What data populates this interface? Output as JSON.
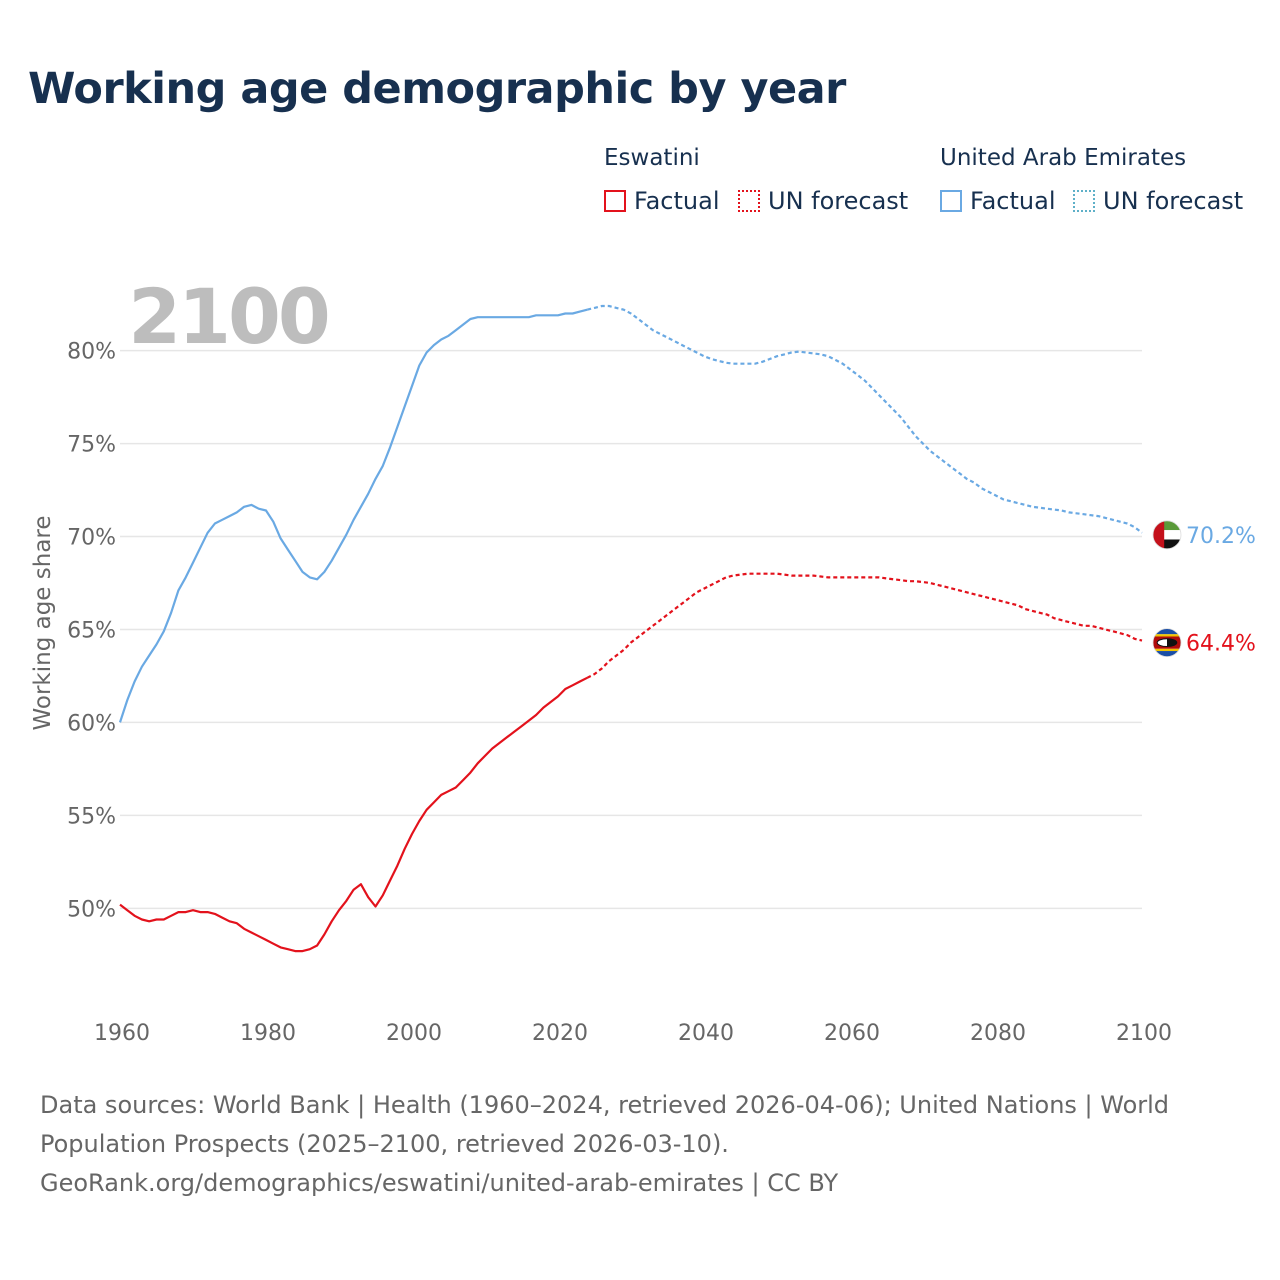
{
  "title": "Working age demographic by year",
  "legend": {
    "groups": [
      {
        "country": "Eswatini",
        "factual_label": "Factual",
        "forecast_label": "UN forecast",
        "color": "#e3121c"
      },
      {
        "country": "United Arab Emirates",
        "factual_label": "Factual",
        "forecast_label": "UN forecast",
        "color": "#6aa9e3"
      }
    ]
  },
  "footer": {
    "line1": "Data sources: World Bank | Health (1960–2024, retrieved 2026-04-06); United Nations | World",
    "line2": "Population Prospects (2025–2100, retrieved 2026-03-10).",
    "line3": "GeoRank.org/demographics/eswatini/united-arab-emirates | CC BY"
  },
  "chart_data": {
    "type": "line",
    "title": "Working age demographic by year",
    "year_label": "2100",
    "xlabel": "",
    "ylabel": "Working age share",
    "xlim": [
      1960,
      2100
    ],
    "ylim": [
      44.8,
      83.8
    ],
    "x_ticks": [
      1960,
      1980,
      2000,
      2020,
      2040,
      2060,
      2080,
      2100
    ],
    "y_ticks": [
      50,
      55,
      60,
      65,
      70,
      75,
      80
    ],
    "y_tick_labels": [
      "50%",
      "55%",
      "60%",
      "65%",
      "70%",
      "75%",
      "80%"
    ],
    "grid": true,
    "forecast_start": 2024,
    "series": [
      {
        "name": "Eswatini",
        "color": "#e3121c",
        "end_label": "64.4%",
        "flag": "eswatini",
        "points": [
          [
            1960,
            50.2
          ],
          [
            1961,
            49.9
          ],
          [
            1962,
            49.6
          ],
          [
            1963,
            49.4
          ],
          [
            1964,
            49.3
          ],
          [
            1965,
            49.4
          ],
          [
            1966,
            49.4
          ],
          [
            1967,
            49.6
          ],
          [
            1968,
            49.8
          ],
          [
            1969,
            49.8
          ],
          [
            1970,
            49.9
          ],
          [
            1971,
            49.8
          ],
          [
            1972,
            49.8
          ],
          [
            1973,
            49.7
          ],
          [
            1974,
            49.5
          ],
          [
            1975,
            49.3
          ],
          [
            1976,
            49.2
          ],
          [
            1977,
            48.9
          ],
          [
            1978,
            48.7
          ],
          [
            1979,
            48.5
          ],
          [
            1980,
            48.3
          ],
          [
            1981,
            48.1
          ],
          [
            1982,
            47.9
          ],
          [
            1983,
            47.8
          ],
          [
            1984,
            47.7
          ],
          [
            1985,
            47.7
          ],
          [
            1986,
            47.8
          ],
          [
            1987,
            48.0
          ],
          [
            1988,
            48.6
          ],
          [
            1989,
            49.3
          ],
          [
            1990,
            49.9
          ],
          [
            1991,
            50.4
          ],
          [
            1992,
            51.0
          ],
          [
            1993,
            51.3
          ],
          [
            1994,
            50.6
          ],
          [
            1995,
            50.1
          ],
          [
            1996,
            50.7
          ],
          [
            1997,
            51.5
          ],
          [
            1998,
            52.3
          ],
          [
            1999,
            53.2
          ],
          [
            2000,
            54.0
          ],
          [
            2001,
            54.7
          ],
          [
            2002,
            55.3
          ],
          [
            2003,
            55.7
          ],
          [
            2004,
            56.1
          ],
          [
            2005,
            56.3
          ],
          [
            2006,
            56.5
          ],
          [
            2007,
            56.9
          ],
          [
            2008,
            57.3
          ],
          [
            2009,
            57.8
          ],
          [
            2010,
            58.2
          ],
          [
            2011,
            58.6
          ],
          [
            2012,
            58.9
          ],
          [
            2013,
            59.2
          ],
          [
            2014,
            59.5
          ],
          [
            2015,
            59.8
          ],
          [
            2016,
            60.1
          ],
          [
            2017,
            60.4
          ],
          [
            2018,
            60.8
          ],
          [
            2019,
            61.1
          ],
          [
            2020,
            61.4
          ],
          [
            2021,
            61.8
          ],
          [
            2022,
            62.0
          ],
          [
            2023,
            62.2
          ],
          [
            2024,
            62.4
          ],
          [
            2025,
            62.6
          ],
          [
            2026,
            62.9
          ],
          [
            2027,
            63.3
          ],
          [
            2028,
            63.6
          ],
          [
            2029,
            63.9
          ],
          [
            2030,
            64.3
          ],
          [
            2031,
            64.6
          ],
          [
            2032,
            64.9
          ],
          [
            2033,
            65.2
          ],
          [
            2034,
            65.5
          ],
          [
            2035,
            65.8
          ],
          [
            2036,
            66.1
          ],
          [
            2037,
            66.4
          ],
          [
            2038,
            66.7
          ],
          [
            2039,
            67.0
          ],
          [
            2040,
            67.2
          ],
          [
            2041,
            67.4
          ],
          [
            2042,
            67.6
          ],
          [
            2043,
            67.8
          ],
          [
            2044,
            67.9
          ],
          [
            2045,
            67.95
          ],
          [
            2046,
            68.0
          ],
          [
            2047,
            68.0
          ],
          [
            2048,
            68.0
          ],
          [
            2049,
            68.0
          ],
          [
            2050,
            68.0
          ],
          [
            2051,
            67.95
          ],
          [
            2052,
            67.9
          ],
          [
            2053,
            67.9
          ],
          [
            2054,
            67.9
          ],
          [
            2055,
            67.9
          ],
          [
            2056,
            67.85
          ],
          [
            2057,
            67.8
          ],
          [
            2058,
            67.8
          ],
          [
            2059,
            67.8
          ],
          [
            2060,
            67.8
          ],
          [
            2061,
            67.8
          ],
          [
            2062,
            67.8
          ],
          [
            2063,
            67.8
          ],
          [
            2064,
            67.8
          ],
          [
            2065,
            67.75
          ],
          [
            2066,
            67.7
          ],
          [
            2067,
            67.65
          ],
          [
            2068,
            67.6
          ],
          [
            2069,
            67.6
          ],
          [
            2070,
            67.55
          ],
          [
            2071,
            67.5
          ],
          [
            2072,
            67.4
          ],
          [
            2073,
            67.3
          ],
          [
            2074,
            67.2
          ],
          [
            2075,
            67.1
          ],
          [
            2076,
            67.0
          ],
          [
            2077,
            66.9
          ],
          [
            2078,
            66.8
          ],
          [
            2079,
            66.7
          ],
          [
            2080,
            66.6
          ],
          [
            2081,
            66.5
          ],
          [
            2082,
            66.4
          ],
          [
            2083,
            66.3
          ],
          [
            2084,
            66.1
          ],
          [
            2085,
            66.0
          ],
          [
            2086,
            65.9
          ],
          [
            2087,
            65.8
          ],
          [
            2088,
            65.6
          ],
          [
            2089,
            65.5
          ],
          [
            2090,
            65.4
          ],
          [
            2091,
            65.3
          ],
          [
            2092,
            65.2
          ],
          [
            2093,
            65.2
          ],
          [
            2094,
            65.1
          ],
          [
            2095,
            65.0
          ],
          [
            2096,
            64.9
          ],
          [
            2097,
            64.8
          ],
          [
            2098,
            64.7
          ],
          [
            2099,
            64.5
          ],
          [
            2100,
            64.4
          ]
        ]
      },
      {
        "name": "United Arab Emirates",
        "color": "#6aa9e3",
        "end_label": "70.2%",
        "flag": "uae",
        "points": [
          [
            1960,
            60.0
          ],
          [
            1961,
            61.2
          ],
          [
            1962,
            62.2
          ],
          [
            1963,
            63.0
          ],
          [
            1964,
            63.6
          ],
          [
            1965,
            64.2
          ],
          [
            1966,
            64.9
          ],
          [
            1967,
            65.9
          ],
          [
            1968,
            67.1
          ],
          [
            1969,
            67.8
          ],
          [
            1970,
            68.6
          ],
          [
            1971,
            69.4
          ],
          [
            1972,
            70.2
          ],
          [
            1973,
            70.7
          ],
          [
            1974,
            70.9
          ],
          [
            1975,
            71.1
          ],
          [
            1976,
            71.3
          ],
          [
            1977,
            71.6
          ],
          [
            1978,
            71.7
          ],
          [
            1979,
            71.5
          ],
          [
            1980,
            71.4
          ],
          [
            1981,
            70.8
          ],
          [
            1982,
            69.9
          ],
          [
            1983,
            69.3
          ],
          [
            1984,
            68.7
          ],
          [
            1985,
            68.1
          ],
          [
            1986,
            67.8
          ],
          [
            1987,
            67.7
          ],
          [
            1988,
            68.1
          ],
          [
            1989,
            68.7
          ],
          [
            1990,
            69.4
          ],
          [
            1991,
            70.1
          ],
          [
            1992,
            70.9
          ],
          [
            1993,
            71.6
          ],
          [
            1994,
            72.3
          ],
          [
            1995,
            73.1
          ],
          [
            1996,
            73.8
          ],
          [
            1997,
            74.8
          ],
          [
            1998,
            75.9
          ],
          [
            1999,
            77.0
          ],
          [
            2000,
            78.1
          ],
          [
            2001,
            79.2
          ],
          [
            2002,
            79.9
          ],
          [
            2003,
            80.3
          ],
          [
            2004,
            80.6
          ],
          [
            2005,
            80.8
          ],
          [
            2006,
            81.1
          ],
          [
            2007,
            81.4
          ],
          [
            2008,
            81.7
          ],
          [
            2009,
            81.8
          ],
          [
            2010,
            81.8
          ],
          [
            2011,
            81.8
          ],
          [
            2012,
            81.8
          ],
          [
            2013,
            81.8
          ],
          [
            2014,
            81.8
          ],
          [
            2015,
            81.8
          ],
          [
            2016,
            81.8
          ],
          [
            2017,
            81.9
          ],
          [
            2018,
            81.9
          ],
          [
            2019,
            81.9
          ],
          [
            2020,
            81.9
          ],
          [
            2021,
            82.0
          ],
          [
            2022,
            82.0
          ],
          [
            2023,
            82.1
          ],
          [
            2024,
            82.2
          ],
          [
            2025,
            82.3
          ],
          [
            2026,
            82.4
          ],
          [
            2027,
            82.4
          ],
          [
            2028,
            82.3
          ],
          [
            2029,
            82.2
          ],
          [
            2030,
            82.0
          ],
          [
            2031,
            81.7
          ],
          [
            2032,
            81.4
          ],
          [
            2033,
            81.1
          ],
          [
            2034,
            80.9
          ],
          [
            2035,
            80.7
          ],
          [
            2036,
            80.5
          ],
          [
            2037,
            80.3
          ],
          [
            2038,
            80.1
          ],
          [
            2039,
            79.9
          ],
          [
            2040,
            79.7
          ],
          [
            2041,
            79.55
          ],
          [
            2042,
            79.45
          ],
          [
            2043,
            79.35
          ],
          [
            2044,
            79.3
          ],
          [
            2045,
            79.3
          ],
          [
            2046,
            79.3
          ],
          [
            2047,
            79.3
          ],
          [
            2048,
            79.4
          ],
          [
            2049,
            79.55
          ],
          [
            2050,
            79.7
          ],
          [
            2051,
            79.8
          ],
          [
            2052,
            79.9
          ],
          [
            2053,
            79.95
          ],
          [
            2054,
            79.9
          ],
          [
            2055,
            79.85
          ],
          [
            2056,
            79.8
          ],
          [
            2057,
            79.7
          ],
          [
            2058,
            79.5
          ],
          [
            2059,
            79.3
          ],
          [
            2060,
            79.0
          ],
          [
            2061,
            78.7
          ],
          [
            2062,
            78.4
          ],
          [
            2063,
            78.0
          ],
          [
            2064,
            77.6
          ],
          [
            2065,
            77.2
          ],
          [
            2066,
            76.8
          ],
          [
            2067,
            76.4
          ],
          [
            2068,
            75.9
          ],
          [
            2069,
            75.4
          ],
          [
            2070,
            75.0
          ],
          [
            2071,
            74.6
          ],
          [
            2072,
            74.3
          ],
          [
            2073,
            74.0
          ],
          [
            2074,
            73.7
          ],
          [
            2075,
            73.4
          ],
          [
            2076,
            73.1
          ],
          [
            2077,
            72.9
          ],
          [
            2078,
            72.6
          ],
          [
            2079,
            72.4
          ],
          [
            2080,
            72.2
          ],
          [
            2081,
            72.0
          ],
          [
            2082,
            71.9
          ],
          [
            2083,
            71.8
          ],
          [
            2084,
            71.7
          ],
          [
            2085,
            71.6
          ],
          [
            2086,
            71.55
          ],
          [
            2087,
            71.5
          ],
          [
            2088,
            71.45
          ],
          [
            2089,
            71.4
          ],
          [
            2090,
            71.3
          ],
          [
            2091,
            71.25
          ],
          [
            2092,
            71.2
          ],
          [
            2093,
            71.15
          ],
          [
            2094,
            71.1
          ],
          [
            2095,
            71.0
          ],
          [
            2096,
            70.9
          ],
          [
            2097,
            70.8
          ],
          [
            2098,
            70.7
          ],
          [
            2099,
            70.5
          ],
          [
            2100,
            70.2
          ]
        ]
      }
    ]
  }
}
